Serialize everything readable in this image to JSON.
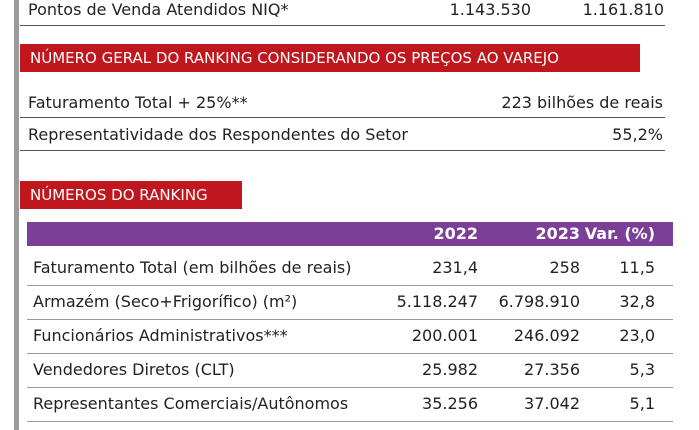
{
  "top_row": {
    "label": "Pontos de Venda Atendidos NIQ*",
    "values": [
      "1.143.530",
      "1.161.810"
    ]
  },
  "section1": {
    "title": "NÚMERO GERAL DO RANKING CONSIDERANDO OS PREÇOS AO VAREJO",
    "rows": [
      [
        "Faturamento Total + 25%**",
        "223 bilhões de reais"
      ],
      [
        "Representatividade dos Respondentes do Setor",
        "55,2%"
      ]
    ]
  },
  "section2": {
    "title": "NÚMEROS DO RANKING",
    "table": {
      "header": [
        "2022",
        "2023",
        "Var. (%)"
      ],
      "rows": [
        [
          "Faturamento Total (em bilhões de reais)",
          "231,4",
          "258",
          "11,5"
        ],
        [
          "Armazém (Seco+Frigorífico) (m²)",
          "5.118.247",
          "6.798.910",
          "32,8"
        ],
        [
          "Funcionários Administrativos***",
          "200.001",
          "246.092",
          "23,0"
        ],
        [
          "Vendedores Diretos (CLT)",
          "25.982",
          "27.356",
          "5,3"
        ],
        [
          "Representantes Comerciais/Autônomos",
          "35.256",
          "37.042",
          "5,1"
        ]
      ]
    }
  }
}
